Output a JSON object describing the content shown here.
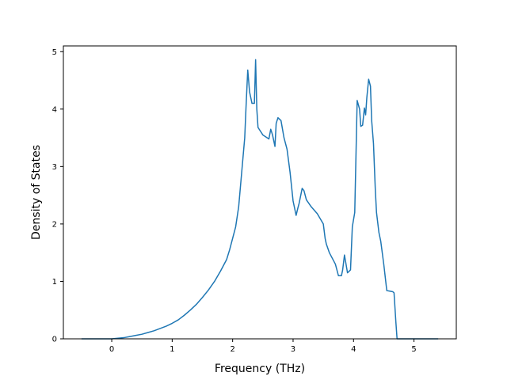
{
  "chart_data": {
    "type": "line",
    "title": "",
    "xlabel": "Frequency (THz)",
    "ylabel": "Density of States",
    "xlim": [
      -0.8,
      5.7
    ],
    "ylim": [
      0,
      5.1
    ],
    "x_ticks": [
      0,
      1,
      2,
      3,
      4,
      5
    ],
    "y_ticks": [
      0,
      1,
      2,
      3,
      4,
      5
    ],
    "grid": false,
    "legend": "none",
    "series": [
      {
        "color": "#1f77b4",
        "x": [
          -0.5,
          -0.2,
          0.0,
          0.1,
          0.2,
          0.3,
          0.4,
          0.5,
          0.6,
          0.7,
          0.8,
          0.9,
          1.0,
          1.1,
          1.2,
          1.3,
          1.4,
          1.5,
          1.6,
          1.7,
          1.8,
          1.9,
          1.95,
          2.0,
          2.05,
          2.1,
          2.15,
          2.2,
          2.22,
          2.25,
          2.28,
          2.32,
          2.36,
          2.38,
          2.4,
          2.42,
          2.5,
          2.6,
          2.63,
          2.66,
          2.7,
          2.72,
          2.75,
          2.8,
          2.85,
          2.9,
          2.95,
          3.0,
          3.05,
          3.08,
          3.1,
          3.15,
          3.18,
          3.22,
          3.3,
          3.4,
          3.5,
          3.53,
          3.55,
          3.6,
          3.65,
          3.7,
          3.75,
          3.8,
          3.82,
          3.85,
          3.9,
          3.95,
          3.98,
          4.02,
          4.06,
          4.1,
          4.12,
          4.15,
          4.18,
          4.2,
          4.22,
          4.25,
          4.28,
          4.3,
          4.33,
          4.36,
          4.38,
          4.42,
          4.45,
          4.5,
          4.55,
          4.6,
          4.65,
          4.67,
          4.7,
          4.72,
          4.75,
          4.78,
          4.82,
          4.86,
          4.88,
          4.9,
          4.92,
          5.0,
          5.4
        ],
        "y": [
          0.0,
          0.0,
          0.0,
          0.01,
          0.02,
          0.04,
          0.06,
          0.08,
          0.11,
          0.14,
          0.18,
          0.22,
          0.27,
          0.33,
          0.41,
          0.5,
          0.6,
          0.72,
          0.85,
          1.0,
          1.18,
          1.38,
          1.55,
          1.75,
          1.95,
          2.3,
          2.9,
          3.5,
          4.0,
          4.68,
          4.3,
          4.1,
          4.1,
          4.86,
          4.0,
          3.68,
          3.55,
          3.48,
          3.65,
          3.55,
          3.35,
          3.75,
          3.85,
          3.8,
          3.5,
          3.3,
          2.9,
          2.4,
          2.15,
          2.28,
          2.36,
          2.62,
          2.58,
          2.42,
          2.3,
          2.18,
          2.0,
          1.75,
          1.65,
          1.5,
          1.4,
          1.3,
          1.1,
          1.1,
          1.2,
          1.46,
          1.15,
          1.2,
          1.95,
          2.2,
          4.15,
          4.0,
          3.7,
          3.72,
          4.02,
          3.9,
          4.2,
          4.52,
          4.4,
          3.8,
          3.4,
          2.6,
          2.2,
          1.85,
          1.7,
          1.3,
          0.84,
          0.83,
          0.82,
          0.8,
          0.3,
          0.0,
          0.0,
          0.0,
          0.0,
          0.0,
          0.0,
          0.0,
          0.0,
          0.0,
          0.0
        ]
      }
    ]
  }
}
